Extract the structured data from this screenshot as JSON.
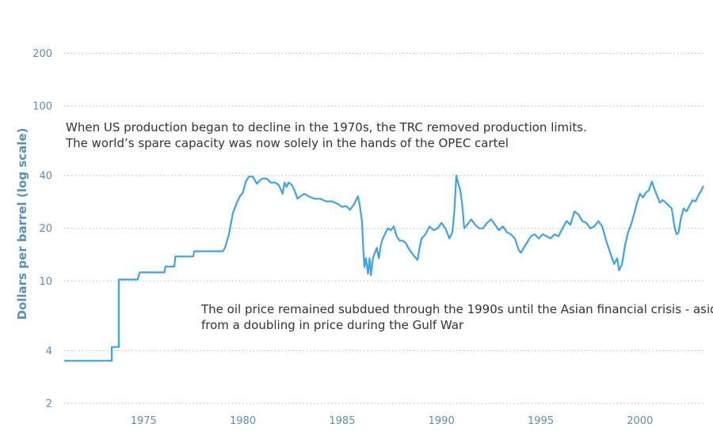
{
  "colors": {
    "series": "#3ba3f0",
    "axis_text": "#5b8fb8",
    "grid": "#b8b8b8",
    "annotation": "#333333"
  },
  "chart_data": {
    "type": "line",
    "title": "",
    "xlabel": "",
    "ylabel": "Dollars per barrel (log scale)",
    "yscale": "log",
    "xlim": [
      1971.0,
      2003.2
    ],
    "ylim": [
      2,
      280
    ],
    "grid": "horizontal dotted",
    "legend": "none",
    "x_ticks": [
      "1975",
      "1980",
      "1985",
      "1990",
      "1995",
      "2000"
    ],
    "y_ticks": [
      "2",
      "4",
      "10",
      "20",
      "40",
      "100",
      "200"
    ],
    "annotations": [
      {
        "lines": [
          "When US production began to decline in the 1970s, the TRC removed production limits.",
          "The world’s spare capacity was now solely in the hands of the OPEC cartel"
        ]
      },
      {
        "lines": [
          "The oil price remained subdued through the 1990s until the Asian financial crisis - aside",
          "from a doubling in price during the Gulf War"
        ]
      }
    ],
    "series": [
      {
        "x": [
          1971.0,
          1973.4,
          1973.4,
          1973.75,
          1973.75,
          1973.95,
          1974.0,
          1974.7,
          1974.8,
          1976.05,
          1976.1,
          1976.55,
          1976.6,
          1977.5,
          1977.55,
          1979.0,
          1979.1,
          1979.3,
          1979.5,
          1979.7,
          1979.85,
          1980.0,
          1980.15,
          1980.3,
          1980.5,
          1980.7,
          1980.85,
          1981.0,
          1981.2,
          1981.4,
          1981.6,
          1981.8,
          1982.0,
          1982.1,
          1982.2,
          1982.3,
          1982.45,
          1982.6,
          1982.75,
          1982.9,
          1983.1,
          1983.3,
          1983.6,
          1983.9,
          1984.2,
          1984.5,
          1984.8,
          1985.0,
          1985.2,
          1985.4,
          1985.6,
          1985.8,
          1985.9,
          1986.0,
          1986.05,
          1986.12,
          1986.2,
          1986.3,
          1986.38,
          1986.45,
          1986.55,
          1986.65,
          1986.75,
          1986.85,
          1986.95,
          1987.05,
          1987.15,
          1987.3,
          1987.45,
          1987.6,
          1987.75,
          1987.9,
          1988.05,
          1988.2,
          1988.4,
          1988.6,
          1988.8,
          1988.9,
          1989.0,
          1989.2,
          1989.4,
          1989.6,
          1989.8,
          1990.0,
          1990.2,
          1990.4,
          1990.55,
          1990.65,
          1990.75,
          1990.85,
          1990.95,
          1991.05,
          1991.15,
          1991.3,
          1991.5,
          1991.7,
          1991.9,
          1992.1,
          1992.3,
          1992.5,
          1992.7,
          1992.9,
          1993.1,
          1993.3,
          1993.5,
          1993.7,
          1993.9,
          1994.0,
          1994.15,
          1994.3,
          1994.5,
          1994.7,
          1994.9,
          1995.1,
          1995.3,
          1995.5,
          1995.7,
          1995.9,
          1996.1,
          1996.3,
          1996.5,
          1996.7,
          1996.9,
          1997.1,
          1997.3,
          1997.5,
          1997.7,
          1997.9,
          1998.1,
          1998.3,
          1998.5,
          1998.7,
          1998.85,
          1998.95,
          1999.1,
          1999.25,
          1999.4,
          1999.55,
          1999.7,
          1999.85,
          2000.0,
          2000.15,
          2000.3,
          2000.45,
          2000.6,
          2000.75,
          2000.9,
          2001.0,
          2001.15,
          2001.3,
          2001.45,
          2001.6,
          2001.75,
          2001.85,
          2001.95,
          2002.05,
          2002.2,
          2002.35,
          2002.5,
          2002.65,
          2002.8,
          2002.95,
          2003.1,
          2003.2
        ],
        "y": [
          3.5,
          3.5,
          4.2,
          4.2,
          10.2,
          10.2,
          10.2,
          10.2,
          11.2,
          11.2,
          12.1,
          12.1,
          13.8,
          13.8,
          14.8,
          14.8,
          15.5,
          18.5,
          24.5,
          28,
          30.5,
          32,
          37,
          39.5,
          39.5,
          36,
          37.5,
          38.5,
          38.5,
          36.5,
          36.5,
          35.5,
          31.5,
          36.5,
          34.5,
          36.5,
          35.5,
          33,
          29.5,
          30.5,
          31.5,
          30.5,
          29.5,
          29.5,
          28.5,
          28.5,
          27.5,
          26.5,
          26.8,
          25.5,
          27.5,
          30.5,
          26.5,
          22,
          16.5,
          12,
          13.5,
          11,
          13.5,
          10.8,
          13.5,
          14.5,
          15.5,
          13.5,
          16,
          17.5,
          18.5,
          20,
          19.5,
          20.5,
          18,
          17,
          17,
          16.5,
          15,
          14,
          13.2,
          15.5,
          17.5,
          18.5,
          20.5,
          19.5,
          20,
          21.5,
          20,
          17.5,
          19,
          25,
          40,
          36,
          33,
          27,
          20,
          21,
          22.5,
          21,
          20,
          20,
          21.5,
          22.5,
          21,
          19.5,
          20.5,
          19,
          18.5,
          17.5,
          15,
          14.5,
          15.5,
          16.5,
          18,
          18.5,
          17.5,
          18.5,
          18,
          17.5,
          18.5,
          18,
          20,
          22,
          21,
          25,
          24,
          22,
          21.5,
          20,
          20.5,
          22,
          20.5,
          17,
          14.5,
          12.5,
          13.5,
          11.5,
          12.5,
          16,
          19,
          21,
          24,
          28,
          31.5,
          30,
          32,
          33,
          37,
          33,
          30,
          28,
          29,
          28,
          27,
          26,
          20,
          18.5,
          19,
          22.5,
          26,
          25,
          27,
          29,
          28.5,
          31,
          33,
          35
        ]
      }
    ]
  }
}
